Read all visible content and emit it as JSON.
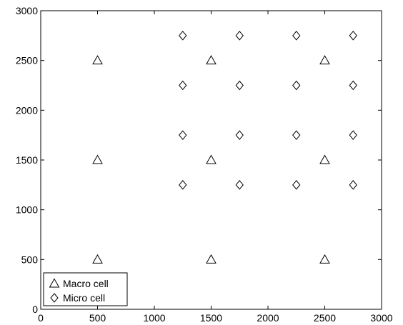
{
  "chart_data": {
    "type": "scatter",
    "title": "",
    "xlabel": "",
    "ylabel": "",
    "xlim": [
      0,
      3000
    ],
    "ylim": [
      0,
      3000
    ],
    "xticks": [
      0,
      500,
      1000,
      1500,
      2000,
      2500,
      3000
    ],
    "yticks": [
      0,
      500,
      1000,
      1500,
      2000,
      2500,
      3000
    ],
    "grid": false,
    "legend_position": "bottom-left",
    "series": [
      {
        "name": "Macro cell",
        "marker": "triangle",
        "color": "#000000",
        "points": [
          [
            500,
            2500
          ],
          [
            1500,
            2500
          ],
          [
            2500,
            2500
          ],
          [
            500,
            1500
          ],
          [
            1500,
            1500
          ],
          [
            2500,
            1500
          ],
          [
            500,
            500
          ],
          [
            1500,
            500
          ],
          [
            2500,
            500
          ]
        ]
      },
      {
        "name": "Micro cell",
        "marker": "diamond",
        "color": "#000000",
        "points": [
          [
            1250,
            2750
          ],
          [
            1750,
            2750
          ],
          [
            2250,
            2750
          ],
          [
            2750,
            2750
          ],
          [
            1250,
            2250
          ],
          [
            1750,
            2250
          ],
          [
            2250,
            2250
          ],
          [
            2750,
            2250
          ],
          [
            1250,
            1750
          ],
          [
            1750,
            1750
          ],
          [
            2250,
            1750
          ],
          [
            2750,
            1750
          ],
          [
            1250,
            1250
          ],
          [
            1750,
            1250
          ],
          [
            2250,
            1250
          ],
          [
            2750,
            1250
          ]
        ]
      }
    ]
  }
}
